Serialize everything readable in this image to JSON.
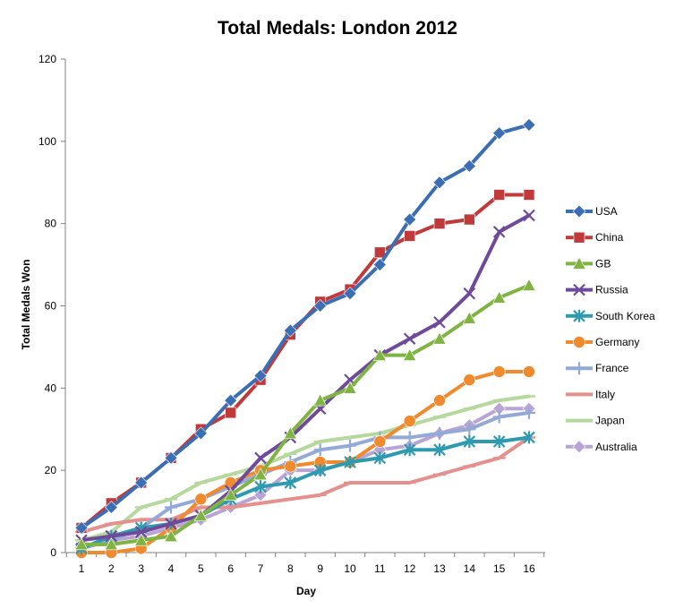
{
  "chart_data": {
    "type": "line",
    "title": "Total Medals: London 2012",
    "xlabel": "Day",
    "ylabel": "Total Medals Won",
    "x": [
      1,
      2,
      3,
      4,
      5,
      6,
      7,
      8,
      9,
      10,
      11,
      12,
      13,
      14,
      15,
      16
    ],
    "ylim": [
      0,
      120
    ],
    "yticks": [
      0,
      20,
      40,
      60,
      80,
      100,
      120
    ],
    "grid": false,
    "legend_position": "right",
    "series": [
      {
        "name": "USA",
        "color": "#3C6EB4",
        "marker": "diamond",
        "values": [
          6,
          11,
          17,
          23,
          29,
          37,
          43,
          54,
          60,
          63,
          70,
          81,
          90,
          94,
          102,
          104
        ]
      },
      {
        "name": "China",
        "color": "#C0393B",
        "marker": "square",
        "values": [
          6,
          12,
          17,
          23,
          30,
          34,
          42,
          53,
          61,
          64,
          73,
          77,
          80,
          81,
          87,
          87
        ]
      },
      {
        "name": "GB",
        "color": "#7FB342",
        "marker": "triangle",
        "values": [
          2,
          2,
          3,
          4,
          9,
          14,
          19,
          29,
          37,
          40,
          48,
          48,
          52,
          57,
          62,
          65
        ]
      },
      {
        "name": "Russia",
        "color": "#6F4A9A",
        "marker": "x",
        "values": [
          3,
          4,
          5,
          7,
          9,
          15,
          23,
          28,
          35,
          42,
          48,
          52,
          56,
          63,
          78,
          82
        ]
      },
      {
        "name": "South Korea",
        "color": "#2E9AB0",
        "marker": "star",
        "values": [
          1,
          4,
          6,
          7,
          9,
          13,
          16,
          17,
          20,
          22,
          23,
          25,
          25,
          27,
          27,
          28
        ]
      },
      {
        "name": "Germany",
        "color": "#F08A2E",
        "marker": "circle",
        "values": [
          0,
          0,
          1,
          6,
          13,
          17,
          20,
          21,
          22,
          22,
          27,
          32,
          37,
          42,
          44,
          44
        ]
      },
      {
        "name": "France",
        "color": "#93A9D6",
        "marker": "plus",
        "values": [
          1,
          3,
          6,
          11,
          13,
          16,
          19,
          22,
          25,
          26,
          28,
          28,
          29,
          30,
          33,
          34
        ]
      },
      {
        "name": "Italy",
        "color": "#E4908D",
        "marker": "dash",
        "values": [
          5,
          7,
          8,
          8,
          11,
          11,
          12,
          13,
          14,
          17,
          17,
          17,
          19,
          21,
          23,
          28
        ]
      },
      {
        "name": "Japan",
        "color": "#B5D89C",
        "marker": "dash",
        "values": [
          3,
          5,
          11,
          13,
          17,
          19,
          21,
          24,
          27,
          28,
          29,
          31,
          33,
          35,
          37,
          38
        ]
      },
      {
        "name": "Australia",
        "color": "#B9A4D6",
        "marker": "diamond",
        "values": [
          1,
          3,
          4,
          6,
          8,
          11,
          14,
          20,
          20,
          22,
          25,
          26,
          29,
          31,
          35,
          35
        ]
      }
    ]
  }
}
